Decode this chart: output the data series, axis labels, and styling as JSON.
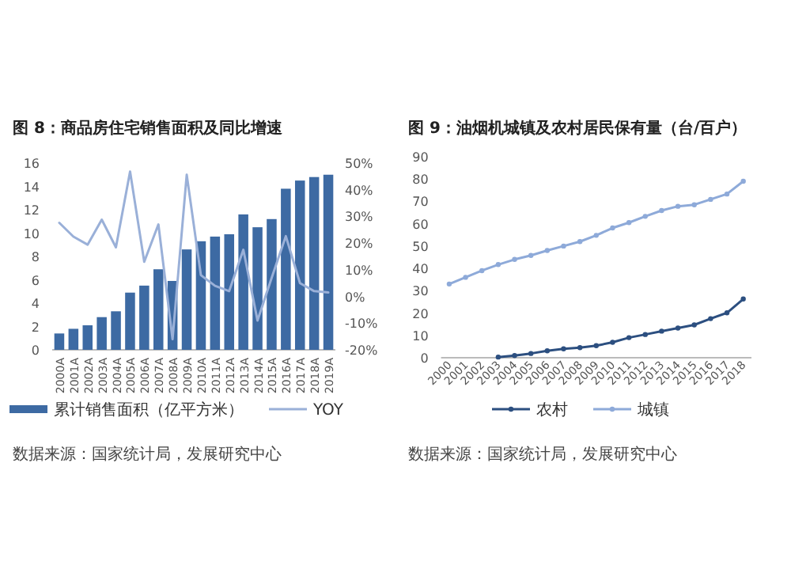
{
  "chart_data": [
    {
      "type": "bar",
      "title": "图 8：商品房住宅销售面积及同比增速",
      "categories": [
        "2000A",
        "2001A",
        "2002A",
        "2003A",
        "2004A",
        "2005A",
        "2006A",
        "2007A",
        "2008A",
        "2009A",
        "2010A",
        "2011A",
        "2012A",
        "2013A",
        "2014A",
        "2015A",
        "2016A",
        "2017A",
        "2018A",
        "2019A"
      ],
      "series": [
        {
          "name": "累计销售面积（亿平方米）",
          "color": "#3d6aa3",
          "values": [
            1.4,
            1.8,
            2.1,
            2.8,
            3.3,
            4.9,
            5.5,
            6.9,
            5.9,
            8.6,
            9.3,
            9.7,
            9.9,
            11.6,
            10.5,
            11.2,
            13.8,
            14.5,
            14.8,
            15.0
          ]
        },
        {
          "name": "YOY",
          "type": "line",
          "axis": "y2",
          "color": "#9ab0d8",
          "values": [
            27.6,
            22.4,
            19.4,
            28.8,
            18.4,
            46.8,
            13,
            27,
            -16,
            45.6,
            8,
            4,
            2,
            17.5,
            -9,
            7,
            22.6,
            5,
            2,
            1.5
          ]
        }
      ],
      "ylim": [
        0,
        16
      ],
      "yticks": [
        0,
        2,
        4,
        6,
        8,
        10,
        12,
        14,
        16
      ],
      "y2lim": [
        -20,
        50
      ],
      "y2ticks": [
        {
          "value": -20,
          "label": "-20%"
        },
        {
          "value": -10,
          "label": "-10%"
        },
        {
          "value": 0,
          "label": "0%"
        },
        {
          "value": 10,
          "label": "10%"
        },
        {
          "value": 20,
          "label": "20%"
        },
        {
          "value": 30,
          "label": "30%"
        },
        {
          "value": 40,
          "label": "40%"
        },
        {
          "value": 50,
          "label": "50%"
        }
      ],
      "legend": "bottom",
      "annotations": [
        "数据来源：国家统计局，发展研究中心"
      ]
    },
    {
      "type": "line",
      "title": "图 9：油烟机城镇及农村居民保有量（台/百户）",
      "categories": [
        "2000",
        "2001",
        "2002",
        "2003",
        "2004",
        "2005",
        "2006",
        "2007",
        "2008",
        "2009",
        "2010",
        "2011",
        "2012",
        "2013",
        "2014",
        "2015",
        "2016",
        "2017",
        "2018"
      ],
      "series": [
        {
          "name": "农村",
          "color": "#2c4f80",
          "values": [
            null,
            null,
            null,
            0.3,
            1.0,
            1.9,
            3.1,
            4.0,
            4.5,
            5.4,
            6.9,
            9.0,
            10.4,
            11.9,
            13.3,
            14.7,
            17.5,
            20.1,
            26.3
          ]
        },
        {
          "name": "城镇",
          "color": "#8eaad9",
          "values": [
            33,
            36,
            39,
            41.7,
            44,
            45.8,
            48,
            50,
            52,
            54.8,
            58.1,
            60.5,
            63.3,
            65.9,
            67.8,
            68.5,
            70.9,
            73.3,
            79.0
          ]
        }
      ],
      "ylim": [
        0,
        90
      ],
      "yticks": [
        0,
        10,
        20,
        30,
        40,
        50,
        60,
        70,
        80,
        90
      ],
      "marker": "circle",
      "legend": "bottom",
      "annotations": [
        "数据来源：国家统计局，发展研究中心"
      ]
    }
  ]
}
